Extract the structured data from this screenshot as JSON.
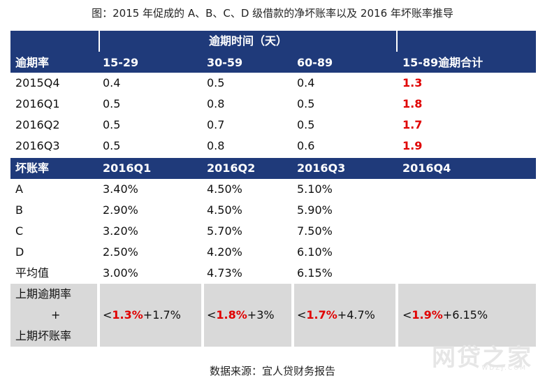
{
  "title": "图：2015 年促成的 A、B、C、D 级借款的净坏账率以及 2016 年坏账率推导",
  "source": "数据来源：宜人贷财务报告",
  "watermark": "网贷之家",
  "watermark_sub": "WDZJ.COM",
  "colors": {
    "header_bg": "#1f3a7a",
    "highlight": "#e00000",
    "footer_bg": "#d9d9d9"
  },
  "overdue": {
    "group_header": "逾期时间（天）",
    "headers": [
      "逾期率",
      "15-29",
      "30-59",
      "60-89",
      "15-89逾期合计"
    ],
    "rows": [
      {
        "label": "2015Q4",
        "v1": "0.4",
        "v2": "0.5",
        "v3": "0.4",
        "total": "1.3"
      },
      {
        "label": "2016Q1",
        "v1": "0.5",
        "v2": "0.8",
        "v3": "0.5",
        "total": "1.8"
      },
      {
        "label": "2016Q2",
        "v1": "0.5",
        "v2": "0.7",
        "v3": "0.5",
        "total": "1.7"
      },
      {
        "label": "2016Q3",
        "v1": "0.5",
        "v2": "0.8",
        "v3": "0.6",
        "total": "1.9"
      }
    ]
  },
  "badrate": {
    "headers": [
      "坏账率",
      "2016Q1",
      "2016Q2",
      "2016Q3",
      "2016Q4"
    ],
    "rows": [
      {
        "label": "A",
        "q1": "3.40%",
        "q2": "4.50%",
        "q3": "5.10%"
      },
      {
        "label": "B",
        "q1": "2.90%",
        "q2": "4.50%",
        "q3": "5.90%"
      },
      {
        "label": "C",
        "q1": "3.20%",
        "q2": "5.70%",
        "q3": "7.50%"
      },
      {
        "label": "D",
        "q1": "2.50%",
        "q2": "4.20%",
        "q3": "6.10%"
      },
      {
        "label": "平均值",
        "q1": "3.00%",
        "q2": "4.73%",
        "q3": "6.15%"
      }
    ]
  },
  "footer": {
    "label_line1": "上期逾期率",
    "label_plus": "+",
    "label_line2": "上期坏账率",
    "cells": [
      {
        "lt": "<",
        "red": "1.3%",
        "rest": "+1.7%"
      },
      {
        "lt": "<",
        "red": "1.8%",
        "rest": "+3%"
      },
      {
        "lt": "<",
        "red": "1.7%",
        "rest": "+4.7%"
      },
      {
        "lt": "<",
        "red": "1.9%",
        "rest": "+6.15%"
      }
    ]
  }
}
